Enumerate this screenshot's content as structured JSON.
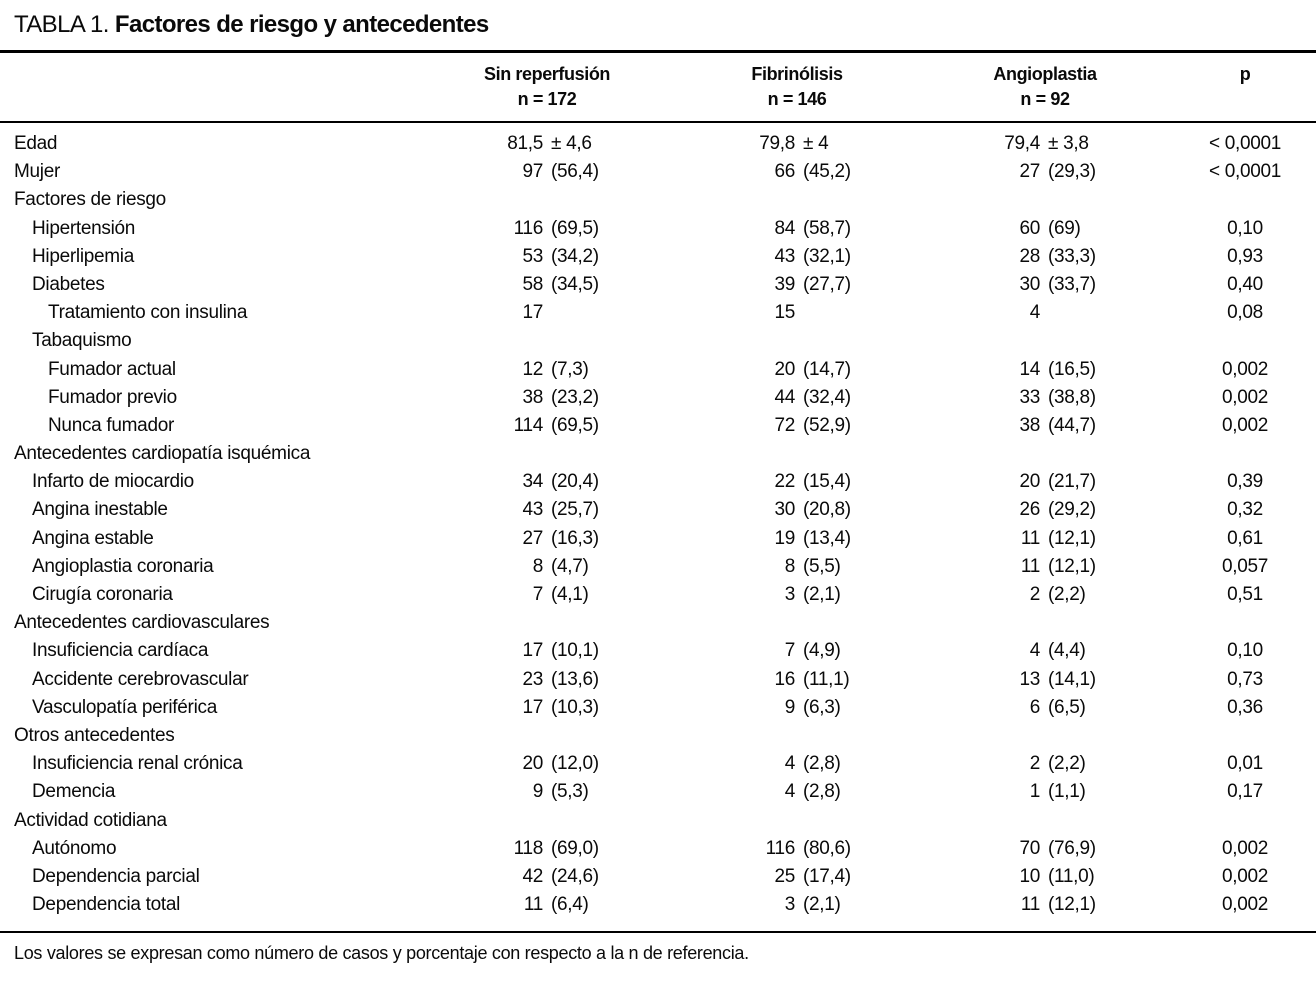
{
  "colors": {
    "background": "#ffffff",
    "text": "#0a0a0a",
    "rule": "#000000"
  },
  "title": {
    "prefix": "TABLA 1.",
    "caption": "Factores de riesgo y antecedentes"
  },
  "columns": [
    {
      "name": "Sin reperfusión",
      "n": "n = 172"
    },
    {
      "name": "Fibrinólisis",
      "n": "n = 146"
    },
    {
      "name": "Angioplastia",
      "n": "n = 92"
    },
    {
      "name": "p",
      "n": ""
    }
  ],
  "rows": [
    {
      "label": "Edad",
      "indent": 0,
      "values": [
        "81,5 ± 4,6",
        "79,8 ± 4",
        "79,4 ± 3,8"
      ],
      "p": "< 0,0001"
    },
    {
      "label": "Mujer",
      "indent": 0,
      "values": [
        "97 (56,4)",
        "66 (45,2)",
        "27 (29,3)"
      ],
      "p": "< 0,0001"
    },
    {
      "label": "Factores de riesgo",
      "indent": 0,
      "values": [],
      "p": ""
    },
    {
      "label": "Hipertensión",
      "indent": 1,
      "values": [
        "116 (69,5)",
        "84 (58,7)",
        "60 (69)"
      ],
      "p": "0,10"
    },
    {
      "label": "Hiperlipemia",
      "indent": 1,
      "values": [
        "53 (34,2)",
        "43 (32,1)",
        "28 (33,3)"
      ],
      "p": "0,93"
    },
    {
      "label": "Diabetes",
      "indent": 1,
      "values": [
        "58 (34,5)",
        "39 (27,7)",
        "30 (33,7)"
      ],
      "p": "0,40"
    },
    {
      "label": "Tratamiento con insulina",
      "indent": 2,
      "values": [
        "17",
        "15",
        "4"
      ],
      "p": "0,08"
    },
    {
      "label": "Tabaquismo",
      "indent": 1,
      "values": [],
      "p": ""
    },
    {
      "label": "Fumador actual",
      "indent": 2,
      "values": [
        "12 (7,3)",
        "20 (14,7)",
        "14 (16,5)"
      ],
      "p": "0,002"
    },
    {
      "label": "Fumador previo",
      "indent": 2,
      "values": [
        "38 (23,2)",
        "44 (32,4)",
        "33 (38,8)"
      ],
      "p": "0,002"
    },
    {
      "label": "Nunca fumador",
      "indent": 2,
      "values": [
        "114 (69,5)",
        "72 (52,9)",
        "38 (44,7)"
      ],
      "p": "0,002"
    },
    {
      "label": "Antecedentes cardiopatía isquémica",
      "indent": 0,
      "values": [],
      "p": ""
    },
    {
      "label": "Infarto de miocardio",
      "indent": 1,
      "values": [
        "34 (20,4)",
        "22 (15,4)",
        "20 (21,7)"
      ],
      "p": "0,39"
    },
    {
      "label": "Angina inestable",
      "indent": 1,
      "values": [
        "43 (25,7)",
        "30 (20,8)",
        "26 (29,2)"
      ],
      "p": "0,32"
    },
    {
      "label": "Angina estable",
      "indent": 1,
      "values": [
        "27 (16,3)",
        "19 (13,4)",
        "11 (12,1)"
      ],
      "p": "0,61"
    },
    {
      "label": "Angioplastia coronaria",
      "indent": 1,
      "values": [
        "8 (4,7)",
        "8 (5,5)",
        "11 (12,1)"
      ],
      "p": "0,057"
    },
    {
      "label": "Cirugía coronaria",
      "indent": 1,
      "values": [
        "7 (4,1)",
        "3 (2,1)",
        "2 (2,2)"
      ],
      "p": "0,51"
    },
    {
      "label": "Antecedentes cardiovasculares",
      "indent": 0,
      "values": [],
      "p": ""
    },
    {
      "label": "Insuficiencia cardíaca",
      "indent": 1,
      "values": [
        "17 (10,1)",
        "7 (4,9)",
        "4 (4,4)"
      ],
      "p": "0,10"
    },
    {
      "label": "Accidente cerebrovascular",
      "indent": 1,
      "values": [
        "23 (13,6)",
        "16 (11,1)",
        "13 (14,1)"
      ],
      "p": "0,73"
    },
    {
      "label": "Vasculopatía periférica",
      "indent": 1,
      "values": [
        "17 (10,3)",
        "9 (6,3)",
        "6 (6,5)"
      ],
      "p": "0,36"
    },
    {
      "label": "Otros antecedentes",
      "indent": 0,
      "values": [],
      "p": ""
    },
    {
      "label": "Insuficiencia renal crónica",
      "indent": 1,
      "values": [
        "20 (12,0)",
        "4 (2,8)",
        "2 (2,2)"
      ],
      "p": "0,01"
    },
    {
      "label": "Demencia",
      "indent": 1,
      "values": [
        "9 (5,3)",
        "4 (2,8)",
        "1 (1,1)"
      ],
      "p": "0,17"
    },
    {
      "label": "Actividad cotidiana",
      "indent": 0,
      "values": [],
      "p": ""
    },
    {
      "label": "Autónomo",
      "indent": 1,
      "values": [
        "118 (69,0)",
        "116 (80,6)",
        "70 (76,9)"
      ],
      "p": "0,002"
    },
    {
      "label": "Dependencia parcial",
      "indent": 1,
      "values": [
        "42 (24,6)",
        "25 (17,4)",
        "10 (11,0)"
      ],
      "p": "0,002"
    },
    {
      "label": "Dependencia total",
      "indent": 1,
      "values": [
        "11 (6,4)",
        "3 (2,1)",
        "11 (12,1)"
      ],
      "p": "0,002"
    }
  ],
  "footnote": "Los valores se expresan como número de casos y porcentaje con respecto a la n de referencia."
}
